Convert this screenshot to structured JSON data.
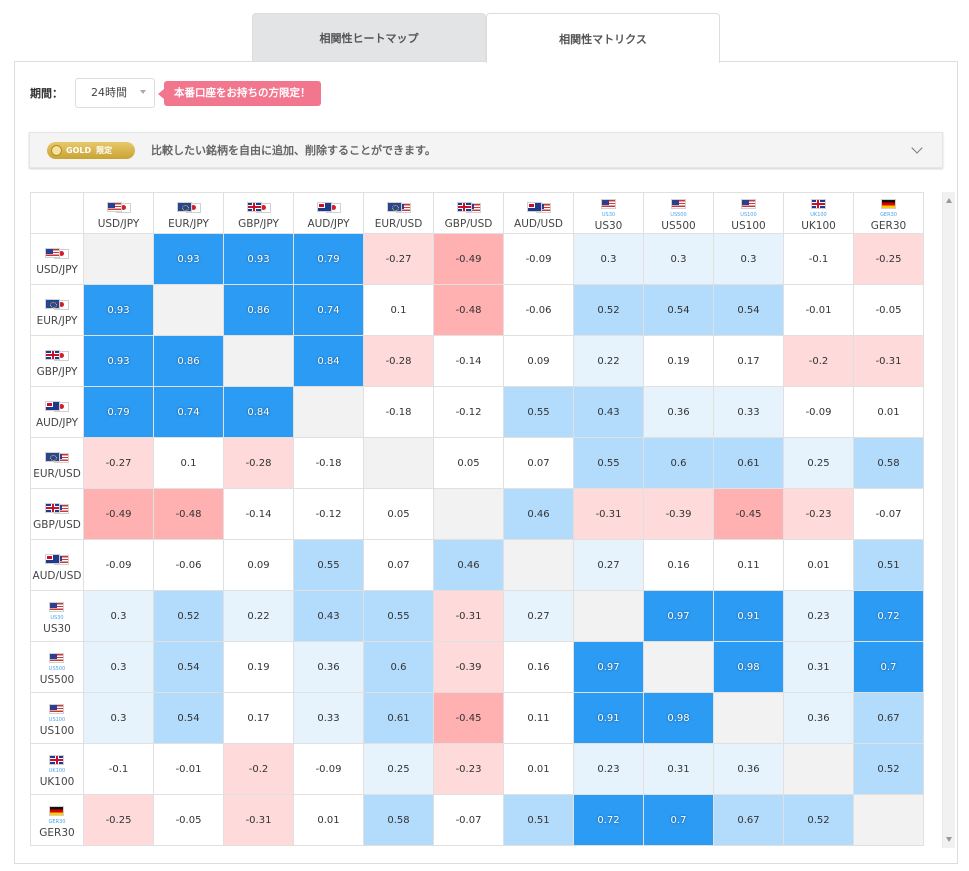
{
  "tabs": [
    {
      "label": "相関性ヒートマップ",
      "active": false
    },
    {
      "label": "相関性マトリクス",
      "active": true
    }
  ],
  "period": {
    "label": "期間：",
    "selected": "24時間"
  },
  "promo_badge": "本番口座をお持ちの方限定！",
  "gold_notice": {
    "badge_text": "GOLD",
    "badge_sub": "限定",
    "text": "比較したい銘柄を自由に追加、削除することができます。"
  },
  "colors": {
    "strong_positive": "#2b9bf4",
    "moderate_positive": "#b3dbfc",
    "weak_positive": "#e6f3fd",
    "neutral": "#ffffff",
    "weak_negative": "#ffdada",
    "moderate_negative": "#ffb1b1",
    "diagonal": "#f2f2f2"
  },
  "instruments": [
    {
      "label": "USD/JPY",
      "flags": [
        "us",
        "jp"
      ],
      "sub": ""
    },
    {
      "label": "EUR/JPY",
      "flags": [
        "eu",
        "jp"
      ],
      "sub": ""
    },
    {
      "label": "GBP/JPY",
      "flags": [
        "gb",
        "jp"
      ],
      "sub": ""
    },
    {
      "label": "AUD/JPY",
      "flags": [
        "au",
        "jp"
      ],
      "sub": ""
    },
    {
      "label": "EUR/USD",
      "flags": [
        "eu",
        "us"
      ],
      "sub": ""
    },
    {
      "label": "GBP/USD",
      "flags": [
        "gb",
        "us"
      ],
      "sub": ""
    },
    {
      "label": "AUD/USD",
      "flags": [
        "au",
        "us"
      ],
      "sub": ""
    },
    {
      "label": "US30",
      "flags": [
        "us"
      ],
      "sub": "US30"
    },
    {
      "label": "US500",
      "flags": [
        "us"
      ],
      "sub": "US500"
    },
    {
      "label": "US100",
      "flags": [
        "us"
      ],
      "sub": "US100"
    },
    {
      "label": "UK100",
      "flags": [
        "gb"
      ],
      "sub": "UK100"
    },
    {
      "label": "GER30",
      "flags": [
        "de"
      ],
      "sub": "GER30"
    }
  ],
  "matrix": [
    [
      null,
      0.93,
      0.93,
      0.79,
      -0.27,
      -0.49,
      -0.09,
      0.3,
      0.3,
      0.3,
      -0.1,
      -0.25
    ],
    [
      0.93,
      null,
      0.86,
      0.74,
      0.1,
      -0.48,
      -0.06,
      0.52,
      0.54,
      0.54,
      -0.01,
      -0.05
    ],
    [
      0.93,
      0.86,
      null,
      0.84,
      -0.28,
      -0.14,
      0.09,
      0.22,
      0.19,
      0.17,
      -0.2,
      -0.31
    ],
    [
      0.79,
      0.74,
      0.84,
      null,
      -0.18,
      -0.12,
      0.55,
      0.43,
      0.36,
      0.33,
      -0.09,
      0.01
    ],
    [
      -0.27,
      0.1,
      -0.28,
      -0.18,
      null,
      0.05,
      0.07,
      0.55,
      0.6,
      0.61,
      0.25,
      0.58
    ],
    [
      -0.49,
      -0.48,
      -0.14,
      -0.12,
      0.05,
      null,
      0.46,
      -0.31,
      -0.39,
      -0.45,
      -0.23,
      -0.07
    ],
    [
      -0.09,
      -0.06,
      0.09,
      0.55,
      0.07,
      0.46,
      null,
      0.27,
      0.16,
      0.11,
      0.01,
      0.51
    ],
    [
      0.3,
      0.52,
      0.22,
      0.43,
      0.55,
      -0.31,
      0.27,
      null,
      0.97,
      0.91,
      0.23,
      0.72
    ],
    [
      0.3,
      0.54,
      0.19,
      0.36,
      0.6,
      -0.39,
      0.16,
      0.97,
      null,
      0.98,
      0.31,
      0.7
    ],
    [
      0.3,
      0.54,
      0.17,
      0.33,
      0.61,
      -0.45,
      0.11,
      0.91,
      0.98,
      null,
      0.36,
      0.67
    ],
    [
      -0.1,
      -0.01,
      -0.2,
      -0.09,
      0.25,
      -0.23,
      0.01,
      0.23,
      0.31,
      0.36,
      null,
      0.52
    ],
    [
      -0.25,
      -0.05,
      -0.31,
      0.01,
      0.58,
      -0.07,
      0.51,
      0.72,
      0.7,
      0.67,
      0.52,
      null
    ]
  ]
}
